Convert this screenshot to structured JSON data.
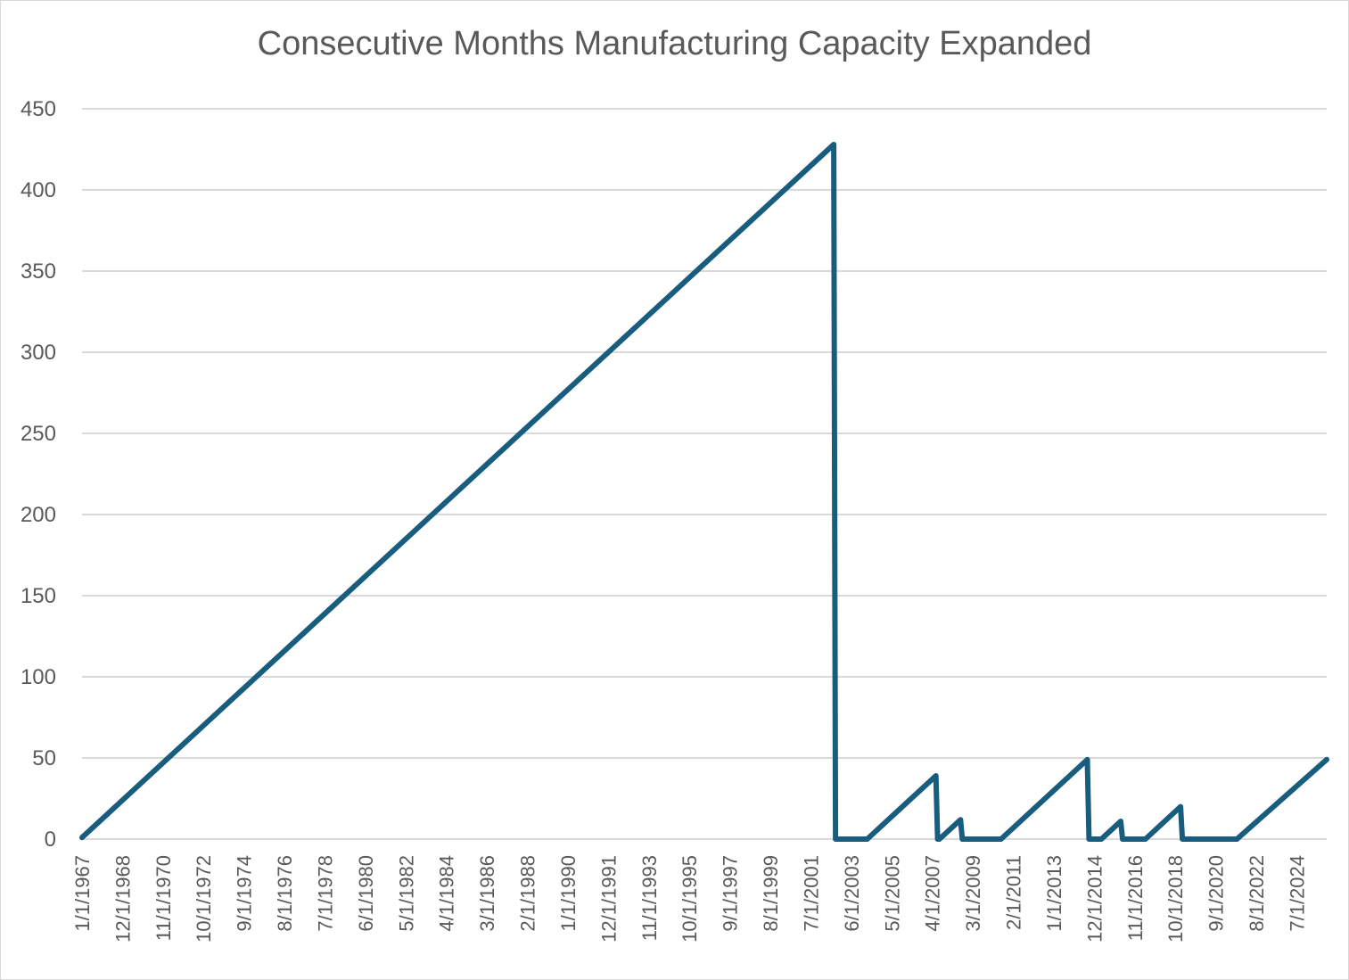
{
  "chart_data": {
    "type": "line",
    "title": "Consecutive Months Manufacturing Capacity Expanded",
    "xlabel": "",
    "ylabel": "",
    "ylim": [
      0,
      450
    ],
    "yticks": [
      0,
      50,
      100,
      150,
      200,
      250,
      300,
      350,
      400,
      450
    ],
    "grid": true,
    "legend": "none",
    "x_start": "1/1/1967",
    "x_end": "12/1/2025",
    "tick_labels": [
      "1/1/1967",
      "12/1/1968",
      "11/1/1970",
      "10/1/1972",
      "9/1/1974",
      "8/1/1976",
      "7/1/1978",
      "6/1/1980",
      "5/1/1982",
      "4/1/1984",
      "3/1/1986",
      "2/1/1988",
      "1/1/1990",
      "12/1/1991",
      "11/1/1993",
      "10/1/1995",
      "9/1/1997",
      "8/1/1999",
      "7/1/2001",
      "6/1/2003",
      "5/1/2005",
      "4/1/2007",
      "3/1/2009",
      "2/1/2011",
      "1/1/2013",
      "12/1/2014",
      "11/1/2016",
      "10/1/2018",
      "9/1/2020",
      "8/1/2022",
      "7/1/2024"
    ],
    "series": [
      {
        "name": "Consecutive Months Manufacturing Capacity Expanded",
        "color": "#185c7e",
        "points": [
          {
            "x": "1/1/1967",
            "y": 1
          },
          {
            "x": "8/1/2002",
            "y": 428
          },
          {
            "x": "9/1/2002",
            "y": 0
          },
          {
            "x": "3/1/2004",
            "y": 0
          },
          {
            "x": "4/1/2004",
            "y": 1
          },
          {
            "x": "6/1/2007",
            "y": 39
          },
          {
            "x": "7/1/2007",
            "y": 0
          },
          {
            "x": "8/1/2007",
            "y": 0
          },
          {
            "x": "9/1/2007",
            "y": 1
          },
          {
            "x": "8/1/2008",
            "y": 12
          },
          {
            "x": "9/1/2008",
            "y": 0
          },
          {
            "x": "7/1/2010",
            "y": 0
          },
          {
            "x": "8/1/2010",
            "y": 1
          },
          {
            "x": "8/1/2014",
            "y": 49
          },
          {
            "x": "9/1/2014",
            "y": 0
          },
          {
            "x": "4/1/2015",
            "y": 0
          },
          {
            "x": "5/1/2015",
            "y": 1
          },
          {
            "x": "3/1/2016",
            "y": 11
          },
          {
            "x": "4/1/2016",
            "y": 0
          },
          {
            "x": "5/1/2017",
            "y": 0
          },
          {
            "x": "6/1/2017",
            "y": 1
          },
          {
            "x": "1/1/2019",
            "y": 20
          },
          {
            "x": "2/1/2019",
            "y": 0
          },
          {
            "x": "9/1/2021",
            "y": 0
          },
          {
            "x": "10/1/2021",
            "y": 1
          },
          {
            "x": "12/1/2025",
            "y": 49
          }
        ]
      }
    ]
  }
}
